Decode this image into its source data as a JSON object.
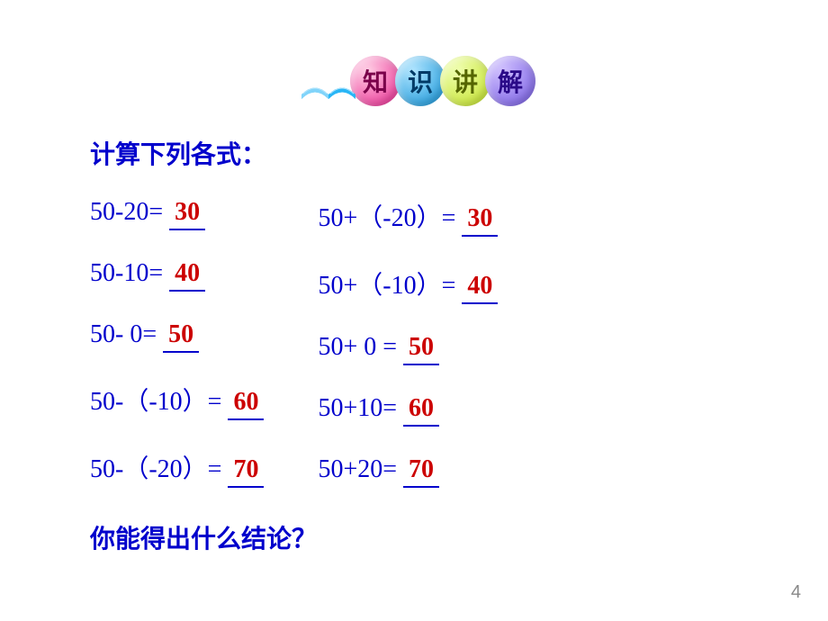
{
  "header": {
    "circles": [
      {
        "char": "知",
        "bg": "radial-gradient(circle at 35% 30%, #ffd0e5, #e91e8c)",
        "color": "#7a004a"
      },
      {
        "char": "识",
        "bg": "radial-gradient(circle at 35% 30%, #b0e5ff, #0a8fd6)",
        "color": "#003a66"
      },
      {
        "char": "讲",
        "bg": "radial-gradient(circle at 35% 30%, #f0ffb0, #c0e020)",
        "color": "#556600"
      },
      {
        "char": "解",
        "bg": "radial-gradient(circle at 35% 30%, #d0c0ff, #7055e0)",
        "color": "#2a0a88"
      }
    ]
  },
  "instruction": "计算下列各式：",
  "leftCol": [
    {
      "expr": "50-20= ",
      "ans": "30"
    },
    {
      "expr": "50-10= ",
      "ans": "40"
    },
    {
      "expr": "50- 0= ",
      "ans": "50"
    },
    {
      "expr": "50-（-10）= ",
      "ans": "60"
    },
    {
      "expr": "50-（-20）= ",
      "ans": "70"
    }
  ],
  "rightCol": [
    {
      "expr": "50+（-20）= ",
      "ans": "30"
    },
    {
      "expr": "50+（-10）= ",
      "ans": "40"
    },
    {
      "expr": "50+   0   = ",
      "ans": "50"
    },
    {
      "expr": "50+10= ",
      "ans": "60"
    },
    {
      "expr": "50+20= ",
      "ans": "70"
    }
  ],
  "question": "你能得出什么结论？",
  "pageNumber": "4",
  "colors": {
    "exprColor": "#0000cc",
    "ansColor": "#cc0000",
    "underlineColor": "#0000cc"
  }
}
